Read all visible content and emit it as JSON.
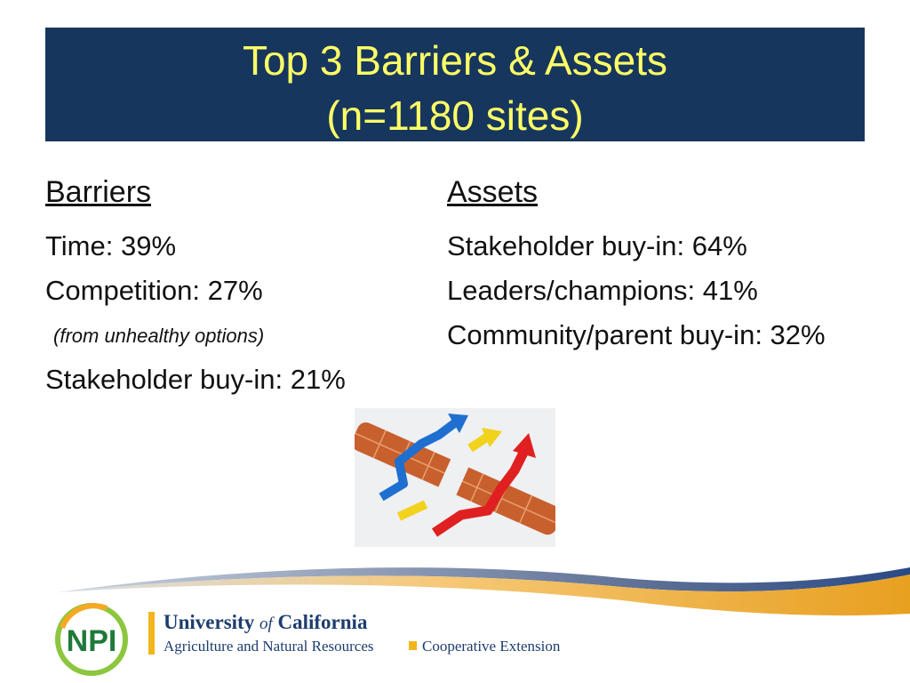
{
  "header": {
    "title_lines": [
      "Top 3 Barriers & Assets",
      "(n=1180 sites)"
    ]
  },
  "barriers": {
    "heading": "Barriers",
    "items": [
      "Time: 39%",
      "Competition: 27%"
    ],
    "note": "(from unhealthy options)",
    "last_item": "Stakeholder buy-in: 21%"
  },
  "assets": {
    "heading": "Assets",
    "items": [
      "Stakeholder buy-in: 64%",
      "Leaders/champions: 41%",
      "Community/parent buy-in: 32%"
    ]
  },
  "footer": {
    "logo_mark": "NPI",
    "university": "University",
    "of": "of",
    "california": "California",
    "division": "Agriculture and Natural Resources",
    "extension": "Cooperative Extension"
  }
}
